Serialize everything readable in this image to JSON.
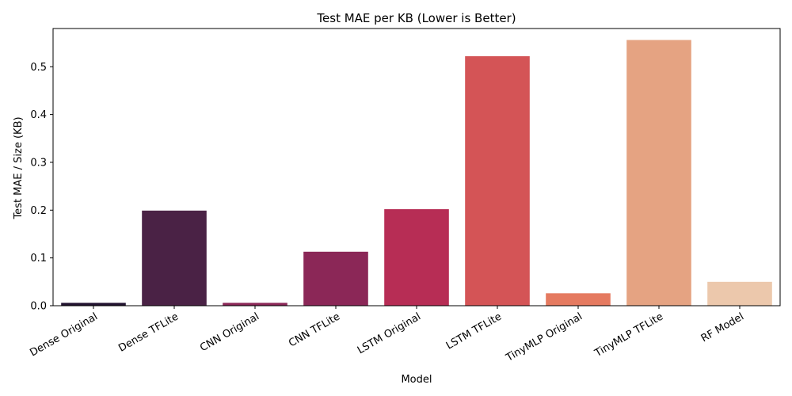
{
  "chart_data": {
    "type": "bar",
    "title": "Test MAE per KB (Lower is Better)",
    "xlabel": "Model",
    "ylabel": "Test MAE / Size (KB)",
    "categories": [
      "Dense Original",
      "Dense TFLite",
      "CNN Original",
      "CNN TFLite",
      "LSTM Original",
      "LSTM TFLite",
      "TinyMLP Original",
      "TinyMLP TFLite",
      "RF Model"
    ],
    "values": [
      0.006,
      0.199,
      0.006,
      0.113,
      0.202,
      0.522,
      0.026,
      0.556,
      0.05
    ],
    "colors": [
      "#221330",
      "#4a2245",
      "#8b2757",
      "#8b2757",
      "#b72d55",
      "#d45456",
      "#e57a60",
      "#e5a382",
      "#ecc8ac"
    ],
    "ylim": [
      0,
      0.58
    ],
    "yticks": [
      0.0,
      0.1,
      0.2,
      0.3,
      0.4,
      0.5
    ],
    "ytick_labels": [
      "0.0",
      "0.1",
      "0.2",
      "0.3",
      "0.4",
      "0.5"
    ],
    "grid": false,
    "legend": "none"
  }
}
